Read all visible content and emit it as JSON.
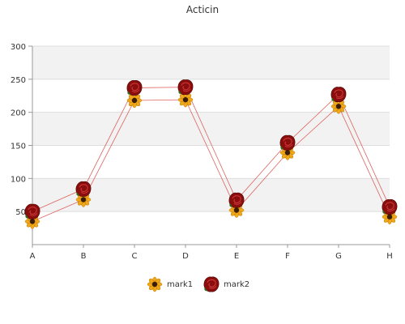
{
  "chart_data": {
    "type": "line",
    "title": "Acticin",
    "categories": [
      "A",
      "B",
      "C",
      "D",
      "E",
      "F",
      "G",
      "H"
    ],
    "series": [
      {
        "name": "mark1",
        "values": [
          35,
          68,
          218,
          219,
          52,
          139,
          209,
          42
        ],
        "marker": "sunflower-icon"
      },
      {
        "name": "mark2",
        "values": [
          50,
          84,
          237,
          238,
          67,
          154,
          227,
          57
        ],
        "marker": "rose-icon"
      }
    ],
    "yticks": [
      50,
      100,
      150,
      200,
      250,
      300
    ],
    "ylim": [
      0,
      300
    ],
    "grid": true,
    "legend": "bottom-center",
    "colors": {
      "line": "#d9534f",
      "band": "#f2f2f2",
      "sunflower_petal": "#f0a818",
      "sunflower_center": "#3b1d08",
      "rose": "#8b0e0e"
    }
  }
}
